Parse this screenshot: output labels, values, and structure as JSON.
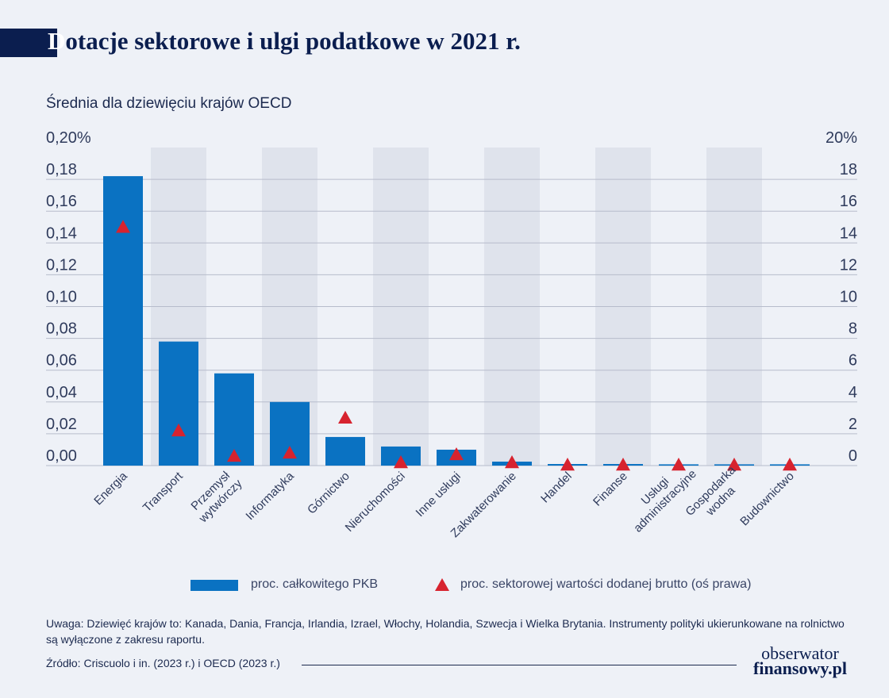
{
  "header": {
    "title_first": "D",
    "title_rest": "otacje sektorowe i ulgi podatkowe w 2021 r.",
    "subtitle": "Średnia dla dziewięciu krajów OECD"
  },
  "chart_data": {
    "type": "bar",
    "categories": [
      [
        "Energia"
      ],
      [
        "Transport"
      ],
      [
        "Przemysł",
        "wytwórczy"
      ],
      [
        "Informatyka"
      ],
      [
        "Górnictwo"
      ],
      [
        "Nieruchomości"
      ],
      [
        "Inne usługi"
      ],
      [
        "Zakwaterowanie"
      ],
      [
        "Handel"
      ],
      [
        "Finanse"
      ],
      [
        "Usługi",
        "administracyjne"
      ],
      [
        "Gospodarka",
        "wodna"
      ],
      [
        "Budownictwo"
      ]
    ],
    "series": [
      {
        "name": "proc. całkowitego PKB",
        "type": "bar",
        "axis": "left",
        "values": [
          0.182,
          0.078,
          0.058,
          0.04,
          0.018,
          0.012,
          0.01,
          0.0025,
          0.001,
          0.001,
          0.0008,
          0.0008,
          0.0008
        ]
      },
      {
        "name": "proc. sektorowej wartości dodanej brutto (oś prawa)",
        "type": "scatter",
        "marker": "triangle",
        "axis": "right",
        "values": [
          15.0,
          2.2,
          0.6,
          0.8,
          3.0,
          0.2,
          0.7,
          0.2,
          0.05,
          0.05,
          0.05,
          0.05,
          0.05
        ]
      }
    ],
    "y_left": {
      "range": [
        0,
        0.2
      ],
      "ticks": [
        "0,00",
        "0,02",
        "0,04",
        "0,06",
        "0,08",
        "0,10",
        "0,12",
        "0,14",
        "0,16",
        "0,18",
        "0,20%"
      ]
    },
    "y_right": {
      "range": [
        0,
        20
      ],
      "ticks": [
        "0",
        "2",
        "4",
        "6",
        "8",
        "10",
        "12",
        "14",
        "16",
        "18",
        "20%"
      ]
    },
    "grid": true,
    "legend_position": "bottom",
    "colors": {
      "bar": "#0a72c2",
      "marker": "#d7232f",
      "band": "#dfe3ec",
      "grid": "#b7bccb"
    }
  },
  "legend": {
    "bar_label": "proc. całkowitego PKB",
    "marker_label": "proc. sektorowej wartości dodanej brutto (oś prawa)"
  },
  "footer": {
    "note": "Uwaga: Dziewięć krajów to: Kanada, Dania, Francja, Irlandia, Izrael, Włochy, Holandia, Szwecja i Wielka Brytania. Instrumenty polityki ukierunkowane na rolnictwo są wyłączone z zakresu raportu.",
    "source": "Źródło: Criscuolo i in. (2023 r.) i OECD (2023 r.)",
    "logo_line1": "obserwator",
    "logo_line2": "finansowy.pl"
  }
}
